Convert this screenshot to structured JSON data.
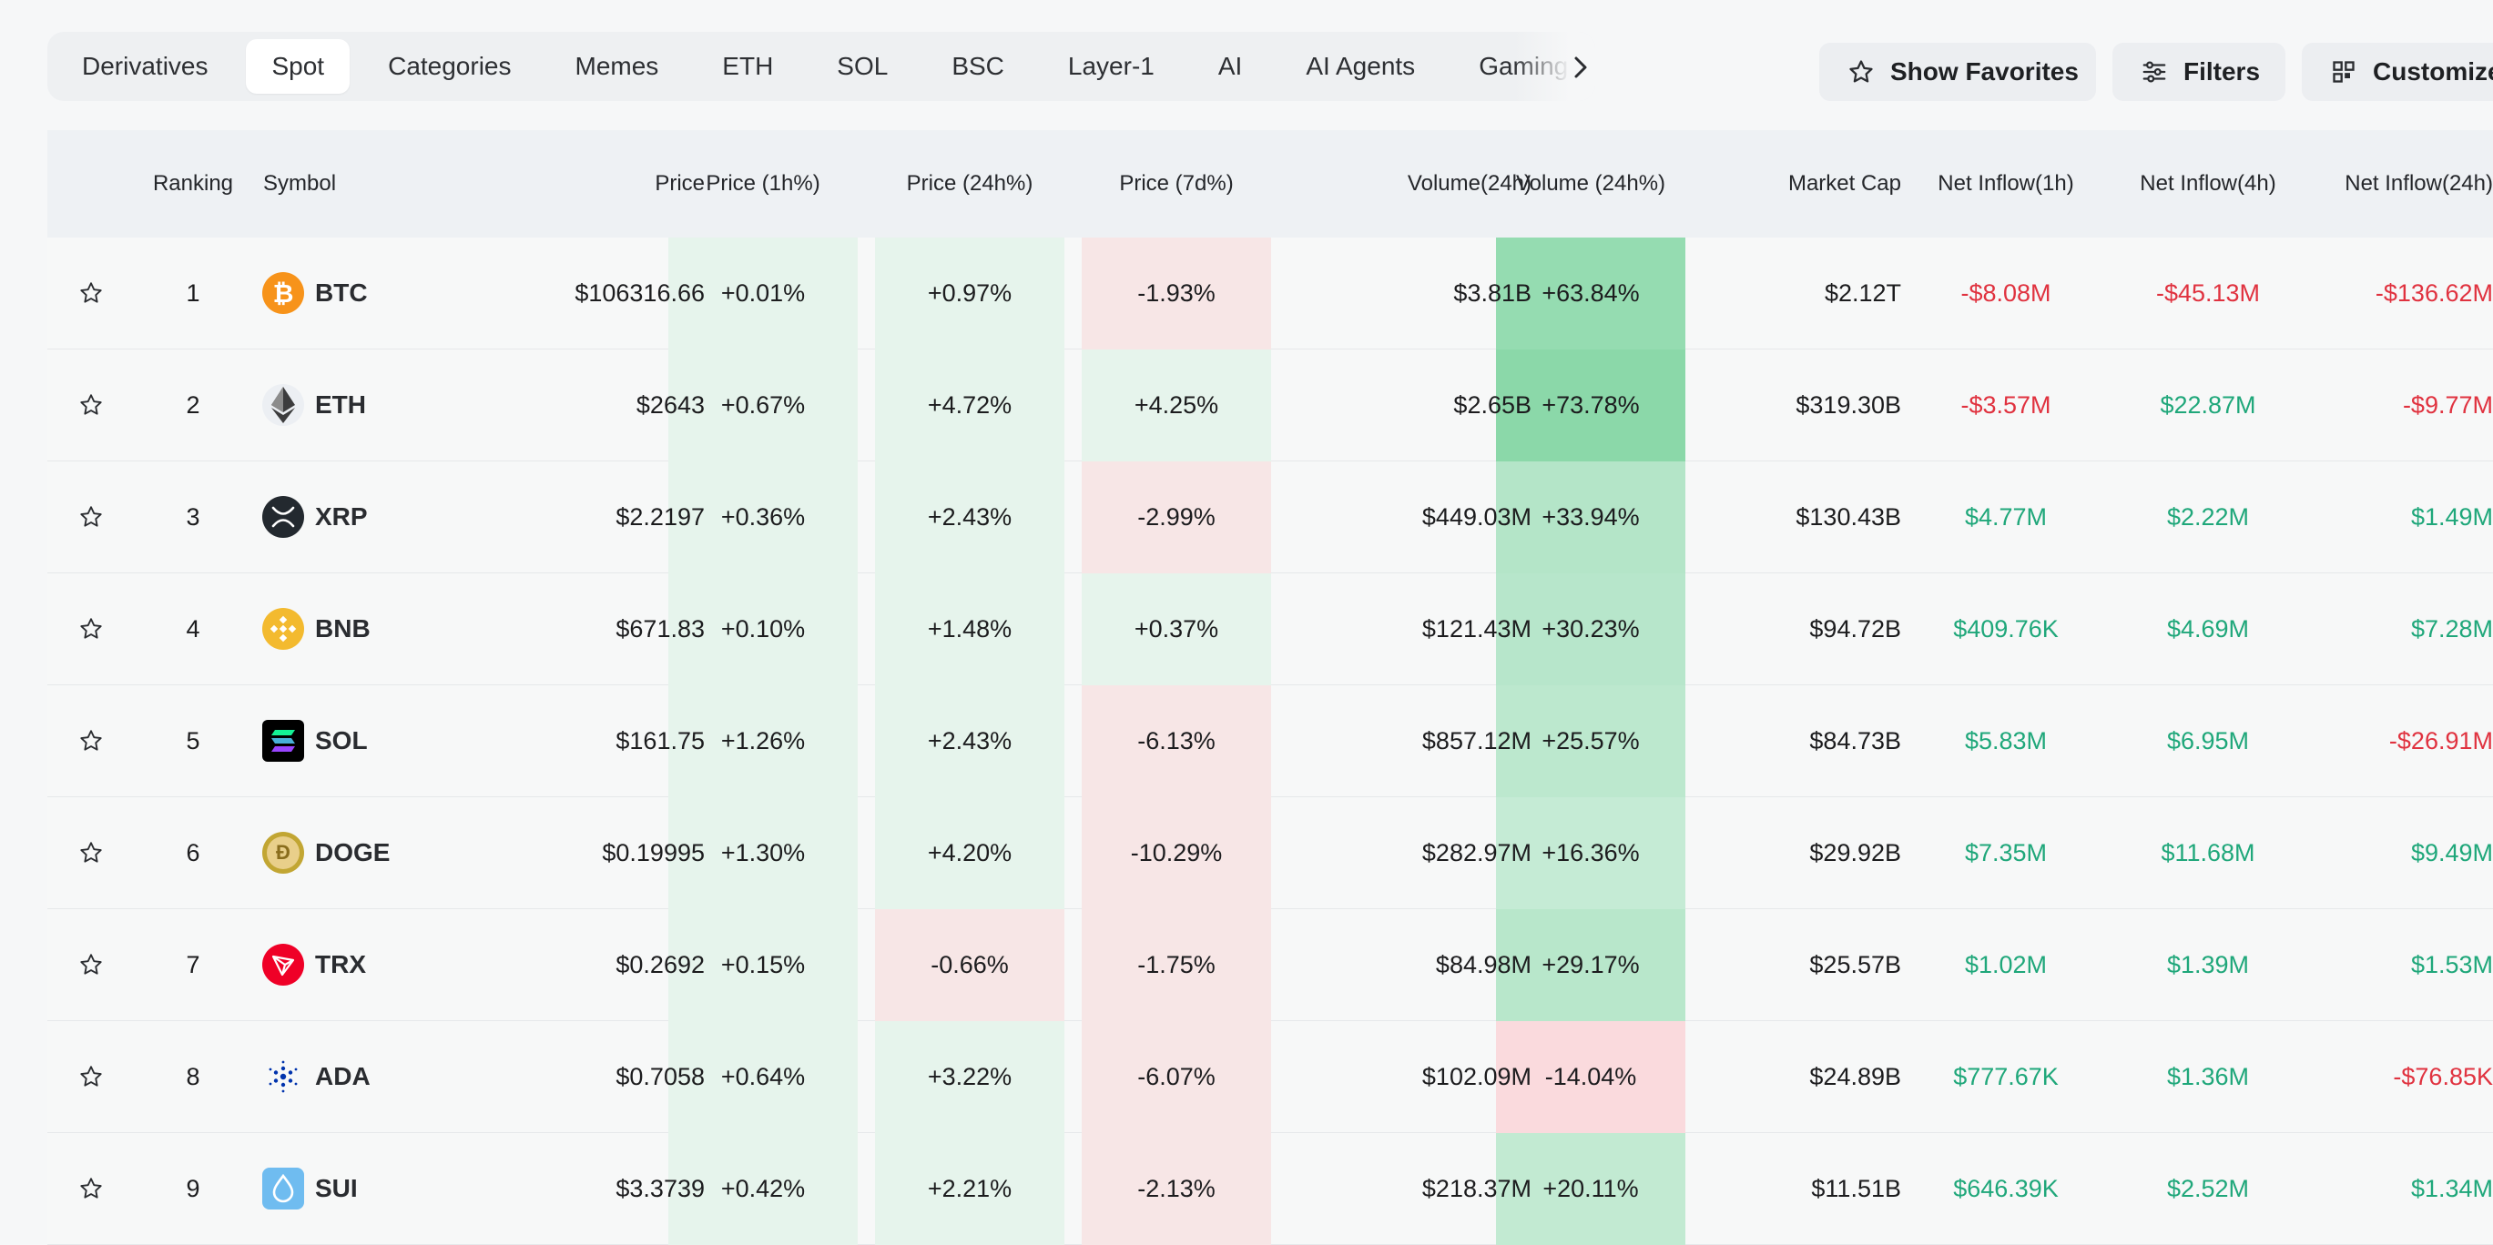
{
  "tabs": {
    "items": [
      "Derivatives",
      "Spot",
      "Categories",
      "Memes",
      "ETH",
      "SOL",
      "BSC",
      "Layer-1",
      "AI",
      "AI Agents",
      "Gaming"
    ],
    "active": "Spot"
  },
  "buttons": {
    "favorites": "Show Favorites",
    "filters": "Filters",
    "customize": "Customize"
  },
  "table": {
    "columns": {
      "ranking": "Ranking",
      "symbol": "Symbol",
      "price": "Price",
      "p1h": "Price (1h%)",
      "p24h": "Price (24h%)",
      "p7d": "Price (7d%)",
      "vol": "Volume(24h)",
      "vol24": "Volume (24h%)",
      "mcap": "Market Cap",
      "in1h": "Net Inflow(1h)",
      "in4h": "Net Inflow(4h)",
      "in24h": "Net Inflow(24h)"
    },
    "rows": [
      {
        "rank": "1",
        "symbol": "BTC",
        "icon": "bitcoin-icon",
        "price": "$106316.66",
        "p1h": "+0.01%",
        "p24h": "+0.97%",
        "p7d": "-1.93%",
        "vol": "$3.81B",
        "vol24": "+63.84%",
        "mcap": "$2.12T",
        "in1h": "-$8.08M",
        "in4h": "-$45.13M",
        "in24h": "-$136.62M"
      },
      {
        "rank": "2",
        "symbol": "ETH",
        "icon": "ethereum-icon",
        "price": "$2643",
        "p1h": "+0.67%",
        "p24h": "+4.72%",
        "p7d": "+4.25%",
        "vol": "$2.65B",
        "vol24": "+73.78%",
        "mcap": "$319.30B",
        "in1h": "-$3.57M",
        "in4h": "$22.87M",
        "in24h": "-$9.77M"
      },
      {
        "rank": "3",
        "symbol": "XRP",
        "icon": "xrp-icon",
        "price": "$2.2197",
        "p1h": "+0.36%",
        "p24h": "+2.43%",
        "p7d": "-2.99%",
        "vol": "$449.03M",
        "vol24": "+33.94%",
        "mcap": "$130.43B",
        "in1h": "$4.77M",
        "in4h": "$2.22M",
        "in24h": "$1.49M"
      },
      {
        "rank": "4",
        "symbol": "BNB",
        "icon": "bnb-icon",
        "price": "$671.83",
        "p1h": "+0.10%",
        "p24h": "+1.48%",
        "p7d": "+0.37%",
        "vol": "$121.43M",
        "vol24": "+30.23%",
        "mcap": "$94.72B",
        "in1h": "$409.76K",
        "in4h": "$4.69M",
        "in24h": "$7.28M"
      },
      {
        "rank": "5",
        "symbol": "SOL",
        "icon": "solana-icon",
        "price": "$161.75",
        "p1h": "+1.26%",
        "p24h": "+2.43%",
        "p7d": "-6.13%",
        "vol": "$857.12M",
        "vol24": "+25.57%",
        "mcap": "$84.73B",
        "in1h": "$5.83M",
        "in4h": "$6.95M",
        "in24h": "-$26.91M"
      },
      {
        "rank": "6",
        "symbol": "DOGE",
        "icon": "dogecoin-icon",
        "price": "$0.19995",
        "p1h": "+1.30%",
        "p24h": "+4.20%",
        "p7d": "-10.29%",
        "vol": "$282.97M",
        "vol24": "+16.36%",
        "mcap": "$29.92B",
        "in1h": "$7.35M",
        "in4h": "$11.68M",
        "in24h": "$9.49M"
      },
      {
        "rank": "7",
        "symbol": "TRX",
        "icon": "tron-icon",
        "price": "$0.2692",
        "p1h": "+0.15%",
        "p24h": "-0.66%",
        "p7d": "-1.75%",
        "vol": "$84.98M",
        "vol24": "+29.17%",
        "mcap": "$25.57B",
        "in1h": "$1.02M",
        "in4h": "$1.39M",
        "in24h": "$1.53M"
      },
      {
        "rank": "8",
        "symbol": "ADA",
        "icon": "cardano-icon",
        "price": "$0.7058",
        "p1h": "+0.64%",
        "p24h": "+3.22%",
        "p7d": "-6.07%",
        "vol": "$102.09M",
        "vol24": "-14.04%",
        "mcap": "$24.89B",
        "in1h": "$777.67K",
        "in4h": "$1.36M",
        "in24h": "-$76.85K"
      },
      {
        "rank": "9",
        "symbol": "SUI",
        "icon": "sui-icon",
        "price": "$3.3739",
        "p1h": "+0.42%",
        "p24h": "+2.21%",
        "p7d": "-2.13%",
        "vol": "$218.37M",
        "vol24": "+20.11%",
        "mcap": "$11.51B",
        "in1h": "$646.39K",
        "in4h": "$2.52M",
        "in24h": "$1.34M"
      }
    ]
  },
  "colors": {
    "positive_text": "#1fa77a",
    "negative_text": "#e0323f",
    "heat_pos_light": "#e6f4ec",
    "heat_neg_light": "#f7e6e6"
  }
}
